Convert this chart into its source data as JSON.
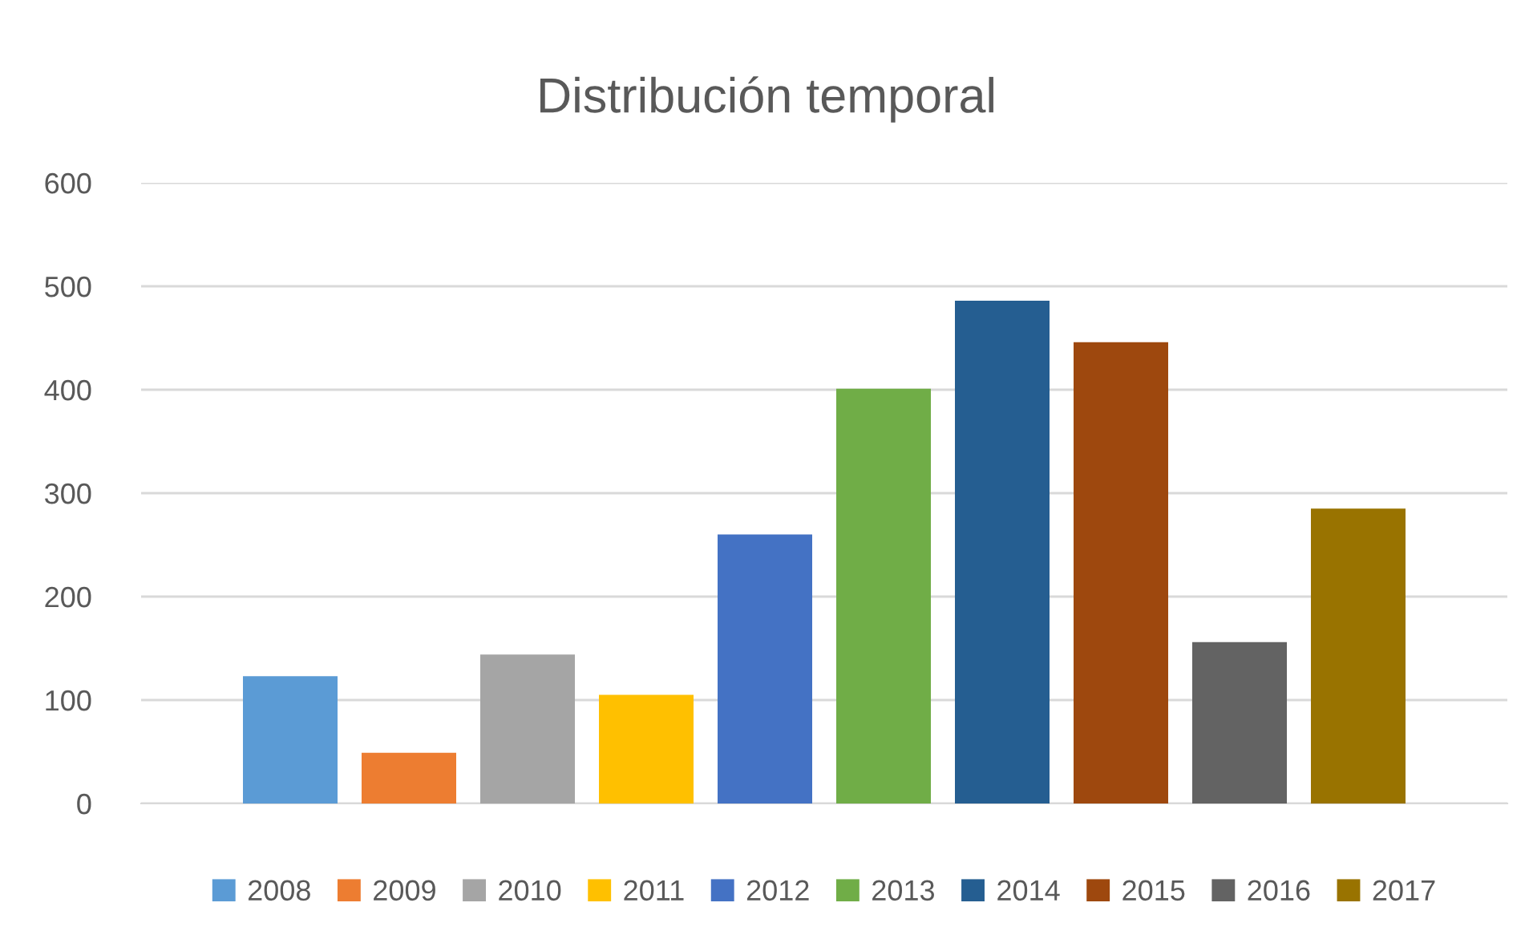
{
  "chart_data": {
    "type": "bar",
    "title": "Distribución temporal",
    "categories": [
      null
    ],
    "series": [
      {
        "name": "2008",
        "color": "#5b9bd5",
        "values": [
          123
        ]
      },
      {
        "name": "2009",
        "color": "#ed7d31",
        "values": [
          49
        ]
      },
      {
        "name": "2010",
        "color": "#a5a5a5",
        "values": [
          144
        ]
      },
      {
        "name": "2011",
        "color": "#ffc000",
        "values": [
          105
        ]
      },
      {
        "name": "2012",
        "color": "#4472c4",
        "values": [
          260
        ]
      },
      {
        "name": "2013",
        "color": "#70ad47",
        "values": [
          401
        ]
      },
      {
        "name": "2014",
        "color": "#255e91",
        "values": [
          486
        ]
      },
      {
        "name": "2015",
        "color": "#9e480e",
        "values": [
          446
        ]
      },
      {
        "name": "2016",
        "color": "#636363",
        "values": [
          156
        ]
      },
      {
        "name": "2017",
        "color": "#997300",
        "values": [
          285
        ]
      }
    ],
    "ylim": [
      0,
      600
    ],
    "yticks": [
      0,
      100,
      200,
      300,
      400,
      500,
      600
    ],
    "grid": "y",
    "legend": "bottom"
  }
}
